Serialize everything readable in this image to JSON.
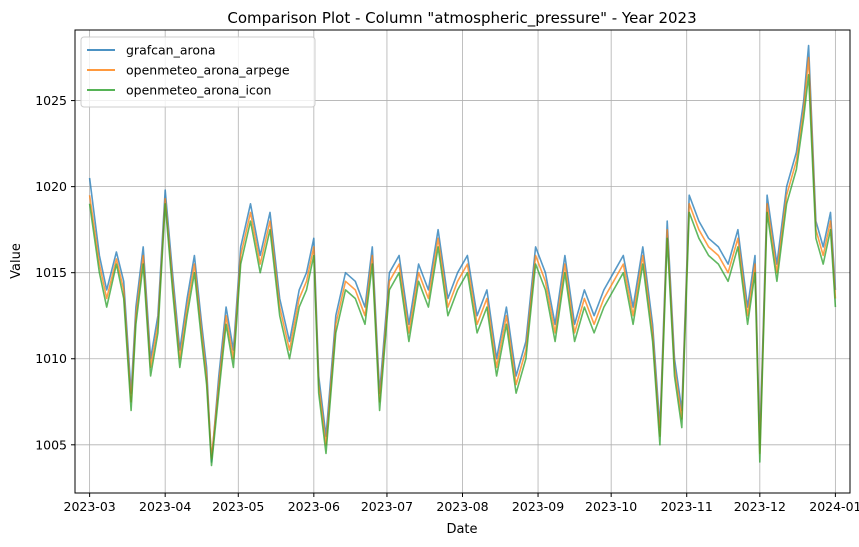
{
  "chart_data": {
    "type": "line",
    "title": "Comparison Plot - Column \"atmospheric_pressure\" - Year 2023",
    "xlabel": "Date",
    "ylabel": "Value",
    "x_ticks": [
      "2023-03",
      "2023-04",
      "2023-05",
      "2023-06",
      "2023-07",
      "2023-08",
      "2023-09",
      "2023-10",
      "2023-11",
      "2023-12",
      "2024-01"
    ],
    "y_ticks": [
      1005,
      1010,
      1015,
      1020,
      1025
    ],
    "xlim": [
      "2023-02-23",
      "2024-01-07"
    ],
    "ylim": [
      1002.2,
      1029.1
    ],
    "grid": true,
    "legend_position": "top-left",
    "series": [
      {
        "name": "grafcan_arona",
        "color": "#1f77b4",
        "x": [
          "2023-03-01",
          "2023-03-05",
          "2023-03-08",
          "2023-03-12",
          "2023-03-15",
          "2023-03-18",
          "2023-03-20",
          "2023-03-23",
          "2023-03-26",
          "2023-03-29",
          "2023-04-01",
          "2023-04-04",
          "2023-04-07",
          "2023-04-10",
          "2023-04-13",
          "2023-04-16",
          "2023-04-18",
          "2023-04-20",
          "2023-04-23",
          "2023-04-26",
          "2023-04-29",
          "2023-05-02",
          "2023-05-06",
          "2023-05-10",
          "2023-05-14",
          "2023-05-18",
          "2023-05-22",
          "2023-05-26",
          "2023-05-29",
          "2023-06-01",
          "2023-06-03",
          "2023-06-06",
          "2023-06-10",
          "2023-06-14",
          "2023-06-18",
          "2023-06-22",
          "2023-06-25",
          "2023-06-28",
          "2023-07-02",
          "2023-07-06",
          "2023-07-10",
          "2023-07-14",
          "2023-07-18",
          "2023-07-22",
          "2023-07-26",
          "2023-07-30",
          "2023-08-03",
          "2023-08-07",
          "2023-08-11",
          "2023-08-15",
          "2023-08-19",
          "2023-08-23",
          "2023-08-27",
          "2023-08-31",
          "2023-09-04",
          "2023-09-08",
          "2023-09-12",
          "2023-09-16",
          "2023-09-20",
          "2023-09-24",
          "2023-09-28",
          "2023-10-02",
          "2023-10-06",
          "2023-10-10",
          "2023-10-14",
          "2023-10-18",
          "2023-10-21",
          "2023-10-24",
          "2023-10-27",
          "2023-10-30",
          "2023-11-02",
          "2023-11-06",
          "2023-11-10",
          "2023-11-14",
          "2023-11-18",
          "2023-11-22",
          "2023-11-26",
          "2023-11-29",
          "2023-12-01",
          "2023-12-04",
          "2023-12-08",
          "2023-12-12",
          "2023-12-16",
          "2023-12-19",
          "2023-12-21",
          "2023-12-24",
          "2023-12-27",
          "2023-12-30",
          "2024-01-01"
        ],
        "values": [
          1020.5,
          1016.0,
          1014.0,
          1016.2,
          1014.5,
          1008.0,
          1013.0,
          1016.5,
          1010.0,
          1012.5,
          1019.8,
          1015.0,
          1010.5,
          1013.5,
          1016.0,
          1012.0,
          1009.5,
          1004.0,
          1009.0,
          1013.0,
          1010.5,
          1016.5,
          1019.0,
          1016.0,
          1018.5,
          1013.5,
          1011.0,
          1014.0,
          1015.0,
          1017.0,
          1009.0,
          1005.5,
          1012.5,
          1015.0,
          1014.5,
          1013.0,
          1016.5,
          1008.0,
          1015.0,
          1016.0,
          1012.0,
          1015.5,
          1014.0,
          1017.5,
          1013.5,
          1015.0,
          1016.0,
          1012.5,
          1014.0,
          1010.0,
          1013.0,
          1009.0,
          1011.0,
          1016.5,
          1015.0,
          1012.0,
          1016.0,
          1012.0,
          1014.0,
          1012.5,
          1014.0,
          1015.0,
          1016.0,
          1013.0,
          1016.5,
          1012.0,
          1006.0,
          1018.0,
          1010.0,
          1007.0,
          1019.5,
          1018.0,
          1017.0,
          1016.5,
          1015.5,
          1017.5,
          1013.0,
          1016.0,
          1005.0,
          1019.5,
          1015.5,
          1020.0,
          1022.0,
          1025.0,
          1028.2,
          1018.0,
          1016.5,
          1018.5,
          1014.0
        ]
      },
      {
        "name": "openmeteo_arona_arpege",
        "color": "#ff7f0e",
        "x": [
          "2023-03-01",
          "2023-03-05",
          "2023-03-08",
          "2023-03-12",
          "2023-03-15",
          "2023-03-18",
          "2023-03-20",
          "2023-03-23",
          "2023-03-26",
          "2023-03-29",
          "2023-04-01",
          "2023-04-04",
          "2023-04-07",
          "2023-04-10",
          "2023-04-13",
          "2023-04-16",
          "2023-04-18",
          "2023-04-20",
          "2023-04-23",
          "2023-04-26",
          "2023-04-29",
          "2023-05-02",
          "2023-05-06",
          "2023-05-10",
          "2023-05-14",
          "2023-05-18",
          "2023-05-22",
          "2023-05-26",
          "2023-05-29",
          "2023-06-01",
          "2023-06-03",
          "2023-06-06",
          "2023-06-10",
          "2023-06-14",
          "2023-06-18",
          "2023-06-22",
          "2023-06-25",
          "2023-06-28",
          "2023-07-02",
          "2023-07-06",
          "2023-07-10",
          "2023-07-14",
          "2023-07-18",
          "2023-07-22",
          "2023-07-26",
          "2023-07-30",
          "2023-08-03",
          "2023-08-07",
          "2023-08-11",
          "2023-08-15",
          "2023-08-19",
          "2023-08-23",
          "2023-08-27",
          "2023-08-31",
          "2023-09-04",
          "2023-09-08",
          "2023-09-12",
          "2023-09-16",
          "2023-09-20",
          "2023-09-24",
          "2023-09-28",
          "2023-10-02",
          "2023-10-06",
          "2023-10-10",
          "2023-10-14",
          "2023-10-18",
          "2023-10-21",
          "2023-10-24",
          "2023-10-27",
          "2023-10-30",
          "2023-11-02",
          "2023-11-06",
          "2023-11-10",
          "2023-11-14",
          "2023-11-18",
          "2023-11-22",
          "2023-11-26",
          "2023-11-29",
          "2023-12-01",
          "2023-12-04",
          "2023-12-08",
          "2023-12-12",
          "2023-12-16",
          "2023-12-19",
          "2023-12-21",
          "2023-12-24",
          "2023-12-27",
          "2023-12-30",
          "2024-01-01"
        ],
        "values": [
          1019.5,
          1015.5,
          1013.5,
          1015.8,
          1014.0,
          1007.5,
          1012.5,
          1016.0,
          1009.5,
          1012.0,
          1019.3,
          1014.5,
          1010.0,
          1013.0,
          1015.5,
          1011.5,
          1009.0,
          1004.2,
          1008.5,
          1012.5,
          1010.0,
          1016.0,
          1018.5,
          1015.5,
          1018.0,
          1013.0,
          1010.5,
          1013.5,
          1014.5,
          1016.5,
          1008.5,
          1005.0,
          1012.0,
          1014.5,
          1014.0,
          1012.5,
          1016.0,
          1007.5,
          1014.5,
          1015.5,
          1011.5,
          1015.0,
          1013.5,
          1017.0,
          1013.0,
          1014.5,
          1015.5,
          1012.0,
          1013.5,
          1009.5,
          1012.5,
          1008.5,
          1010.5,
          1016.0,
          1014.5,
          1011.5,
          1015.5,
          1011.5,
          1013.5,
          1012.0,
          1013.5,
          1014.5,
          1015.5,
          1012.5,
          1016.0,
          1011.5,
          1005.5,
          1017.5,
          1009.5,
          1006.5,
          1019.0,
          1017.5,
          1016.5,
          1016.0,
          1015.0,
          1017.0,
          1012.5,
          1015.5,
          1004.5,
          1019.0,
          1015.0,
          1019.5,
          1021.5,
          1024.5,
          1027.5,
          1017.5,
          1016.0,
          1018.0,
          1013.5
        ]
      },
      {
        "name": "openmeteo_arona_icon",
        "color": "#2ca02c",
        "x": [
          "2023-03-01",
          "2023-03-05",
          "2023-03-08",
          "2023-03-12",
          "2023-03-15",
          "2023-03-18",
          "2023-03-20",
          "2023-03-23",
          "2023-03-26",
          "2023-03-29",
          "2023-04-01",
          "2023-04-04",
          "2023-04-07",
          "2023-04-10",
          "2023-04-13",
          "2023-04-16",
          "2023-04-18",
          "2023-04-20",
          "2023-04-23",
          "2023-04-26",
          "2023-04-29",
          "2023-05-02",
          "2023-05-06",
          "2023-05-10",
          "2023-05-14",
          "2023-05-18",
          "2023-05-22",
          "2023-05-26",
          "2023-05-29",
          "2023-06-01",
          "2023-06-03",
          "2023-06-06",
          "2023-06-10",
          "2023-06-14",
          "2023-06-18",
          "2023-06-22",
          "2023-06-25",
          "2023-06-28",
          "2023-07-02",
          "2023-07-06",
          "2023-07-10",
          "2023-07-14",
          "2023-07-18",
          "2023-07-22",
          "2023-07-26",
          "2023-07-30",
          "2023-08-03",
          "2023-08-07",
          "2023-08-11",
          "2023-08-15",
          "2023-08-19",
          "2023-08-23",
          "2023-08-27",
          "2023-08-31",
          "2023-09-04",
          "2023-09-08",
          "2023-09-12",
          "2023-09-16",
          "2023-09-20",
          "2023-09-24",
          "2023-09-28",
          "2023-10-02",
          "2023-10-06",
          "2023-10-10",
          "2023-10-14",
          "2023-10-18",
          "2023-10-21",
          "2023-10-24",
          "2023-10-27",
          "2023-10-30",
          "2023-11-02",
          "2023-11-06",
          "2023-11-10",
          "2023-11-14",
          "2023-11-18",
          "2023-11-22",
          "2023-11-26",
          "2023-11-29",
          "2023-12-01",
          "2023-12-04",
          "2023-12-08",
          "2023-12-12",
          "2023-12-16",
          "2023-12-19",
          "2023-12-21",
          "2023-12-24",
          "2023-12-27",
          "2023-12-30",
          "2024-01-01"
        ],
        "values": [
          1019.0,
          1015.0,
          1013.0,
          1015.5,
          1013.5,
          1007.0,
          1012.0,
          1015.5,
          1009.0,
          1011.5,
          1019.0,
          1014.0,
          1009.5,
          1012.5,
          1015.0,
          1011.0,
          1008.5,
          1003.8,
          1008.0,
          1012.0,
          1009.5,
          1015.5,
          1018.0,
          1015.0,
          1017.5,
          1012.5,
          1010.0,
          1013.0,
          1014.0,
          1016.0,
          1008.0,
          1004.5,
          1011.5,
          1014.0,
          1013.5,
          1012.0,
          1015.5,
          1007.0,
          1014.0,
          1015.0,
          1011.0,
          1014.5,
          1013.0,
          1016.5,
          1012.5,
          1014.0,
          1015.0,
          1011.5,
          1013.0,
          1009.0,
          1012.0,
          1008.0,
          1010.0,
          1015.5,
          1014.0,
          1011.0,
          1015.0,
          1011.0,
          1013.0,
          1011.5,
          1013.0,
          1014.0,
          1015.0,
          1012.0,
          1015.5,
          1011.0,
          1005.0,
          1017.0,
          1009.0,
          1006.0,
          1018.5,
          1017.0,
          1016.0,
          1015.5,
          1014.5,
          1016.5,
          1012.0,
          1015.0,
          1004.0,
          1018.5,
          1014.5,
          1019.0,
          1021.0,
          1024.0,
          1026.5,
          1017.0,
          1015.5,
          1017.5,
          1013.0
        ]
      }
    ]
  }
}
